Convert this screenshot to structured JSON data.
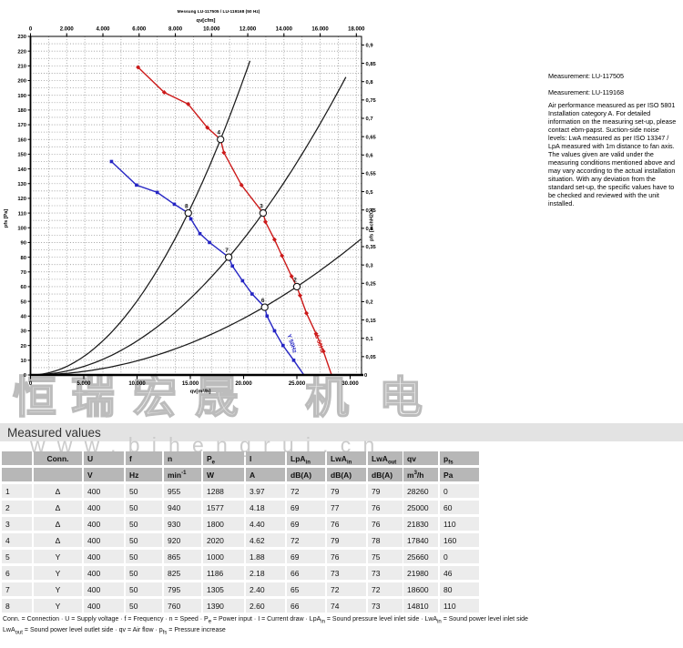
{
  "notes": {
    "measurement_1": "Measurement: LU-117505",
    "measurement_2": "Measurement: LU-119168",
    "paragraph_lines": [
      "Air performance measured as per ISO 5801",
      "Installation category A. For detailed",
      "information on the measuring set-up, please",
      "contact ebm-papst. Suction-side noise",
      "levels: LwA measured as per ISO 13347 /",
      "LpA measured with 1m distance to fan axis.",
      "The values given are valid under the",
      "measuring conditions mentioned above and",
      "may vary according to the actual installation",
      "situation. With any deviation from the",
      "standard set-up, the specific values have to",
      "be checked and reviewed with the unit",
      "installed."
    ]
  },
  "watermark": {
    "chars": [
      "恒",
      "瑞",
      "宏",
      "晟",
      "机",
      "电"
    ],
    "url": "www.bihengrui.cn"
  },
  "section_title": "Measured values",
  "table": {
    "headers": [
      "",
      "Conn.",
      "U",
      "f",
      "n",
      "P~e~",
      "I",
      "LpA~in~",
      "LwA~in~",
      "LwA~out~",
      "qv",
      "p~fs~"
    ],
    "units": [
      "",
      "",
      "V",
      "Hz",
      "min^-1^",
      "W",
      "A",
      "dB(A)",
      "dB(A)",
      "dB(A)",
      "m^3^/h",
      "Pa"
    ],
    "rows": [
      [
        "1",
        "Δ",
        "400",
        "50",
        "955",
        "1288",
        "3.97",
        "72",
        "79",
        "79",
        "28260",
        "0"
      ],
      [
        "2",
        "Δ",
        "400",
        "50",
        "940",
        "1577",
        "4.18",
        "69",
        "77",
        "76",
        "25000",
        "60"
      ],
      [
        "3",
        "Δ",
        "400",
        "50",
        "930",
        "1800",
        "4.40",
        "69",
        "76",
        "76",
        "21830",
        "110"
      ],
      [
        "4",
        "Δ",
        "400",
        "50",
        "920",
        "2020",
        "4.62",
        "72",
        "79",
        "78",
        "17840",
        "160"
      ],
      [
        "5",
        "Y",
        "400",
        "50",
        "865",
        "1000",
        "1.88",
        "69",
        "76",
        "75",
        "25660",
        "0"
      ],
      [
        "6",
        "Y",
        "400",
        "50",
        "825",
        "1186",
        "2.18",
        "66",
        "73",
        "73",
        "21980",
        "46"
      ],
      [
        "7",
        "Y",
        "400",
        "50",
        "795",
        "1305",
        "2.40",
        "65",
        "72",
        "72",
        "18600",
        "80"
      ],
      [
        "8",
        "Y",
        "400",
        "50",
        "760",
        "1390",
        "2.60",
        "66",
        "74",
        "73",
        "14810",
        "110"
      ]
    ]
  },
  "legend_line_1": "Conn. = Connection · U = Supply voltage · f = Frequency · n = Speed · P~e~ = Power input · I = Current draw · LpA~in~ = Sound pressure level inlet side · LwA~in~ = Sound power level inlet side",
  "legend_line_2": "LwA~out~ = Sound power level outlet side · qv = Air flow · p~fs~ = Pressure increase",
  "chart_data": {
    "type": "line",
    "title_top": "Messung LU-117505 / LU-119168 (50 Hz)",
    "x_top": {
      "label": "qv[cfm]",
      "min": 0,
      "max": 18000,
      "step": 2000,
      "m3h_per_cfm": 1.699011
    },
    "x_bottom": {
      "label": "qv[m³/h]",
      "min": 0,
      "max": 31000,
      "step": 5000,
      "last_label": 30000
    },
    "y_left": {
      "label": "pfs [Pa]",
      "min": 0,
      "max": 230,
      "step": 10
    },
    "y_right": {
      "label": "pfs [inchH2O]",
      "min": 0,
      "max": 0.9,
      "step": 0.05,
      "pa_per_unit": 249.089
    },
    "fan_curves": [
      {
        "name": "Δ 50Hz",
        "color": "#cc1a1a",
        "marker": "diamond",
        "points": [
          [
            10100,
            209
          ],
          [
            12550,
            192
          ],
          [
            14800,
            184
          ],
          [
            16600,
            168
          ],
          [
            17840,
            160
          ],
          [
            18150,
            151
          ],
          [
            19800,
            129
          ],
          [
            21830,
            110
          ],
          [
            22050,
            104
          ],
          [
            22900,
            92
          ],
          [
            23600,
            81
          ],
          [
            24500,
            67
          ],
          [
            25000,
            60
          ],
          [
            25300,
            54
          ],
          [
            25900,
            42
          ],
          [
            26800,
            28
          ],
          [
            27500,
            16
          ],
          [
            28260,
            0
          ]
        ]
      },
      {
        "name": "Y 50Hz",
        "color": "#2525c4",
        "marker": "square",
        "points": [
          [
            7600,
            145
          ],
          [
            9950,
            129
          ],
          [
            11900,
            124
          ],
          [
            13500,
            116
          ],
          [
            14810,
            110
          ],
          [
            15050,
            106
          ],
          [
            15900,
            96
          ],
          [
            16800,
            90
          ],
          [
            18600,
            80
          ],
          [
            18950,
            74
          ],
          [
            19900,
            64
          ],
          [
            20800,
            55
          ],
          [
            21980,
            46
          ],
          [
            22200,
            40
          ],
          [
            22900,
            30
          ],
          [
            23700,
            20
          ],
          [
            24700,
            10
          ],
          [
            25660,
            0
          ]
        ]
      }
    ],
    "system_curves": [
      {
        "k": 5.03e-07,
        "q_end": 20600
      },
      {
        "k": 2.31e-07,
        "q_end": 29600
      },
      {
        "k": 9.6e-08,
        "q_end": 31000
      }
    ],
    "operating_points": [
      {
        "label": "2",
        "q": 25000,
        "p": 60
      },
      {
        "label": "3",
        "q": 21830,
        "p": 110
      },
      {
        "label": "4",
        "q": 17840,
        "p": 160
      },
      {
        "label": "6",
        "q": 21980,
        "p": 46
      },
      {
        "label": "7",
        "q": 18600,
        "p": 80
      },
      {
        "label": "8",
        "q": 14810,
        "p": 110
      }
    ]
  }
}
